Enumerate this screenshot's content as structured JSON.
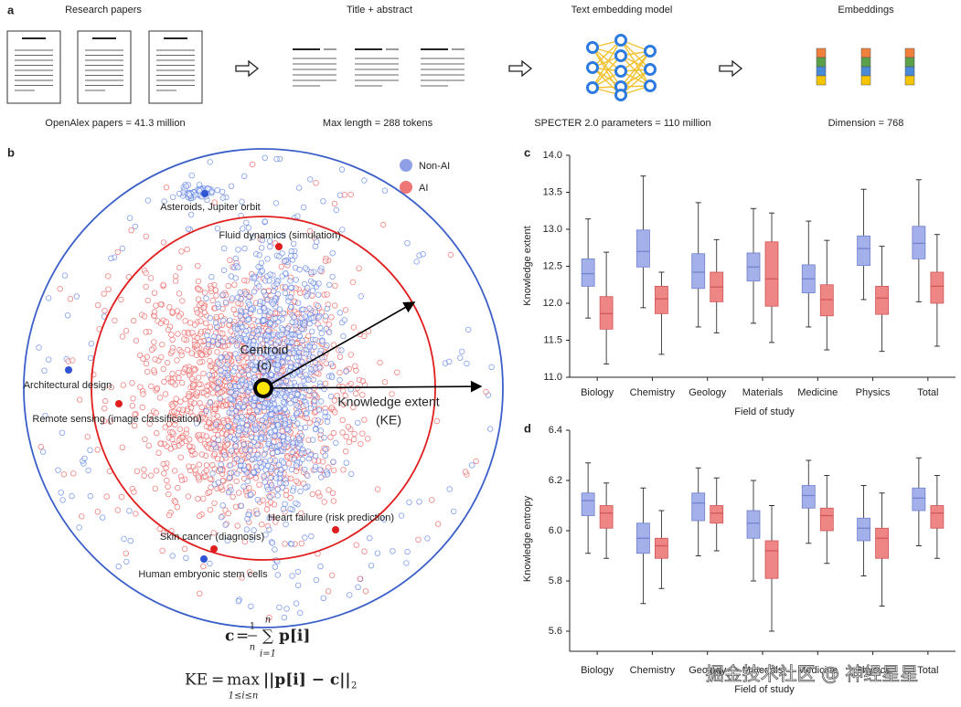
{
  "panel_a": {
    "label": "a",
    "steps": [
      {
        "title": "Research papers",
        "caption": "OpenAlex papers = 41.3 million"
      },
      {
        "title": "Title + abstract",
        "caption": "Max length = 288 tokens"
      },
      {
        "title": "Text embedding model",
        "caption": "SPECTER 2.0 parameters = 110 million"
      },
      {
        "title": "Embeddings",
        "caption": "Dimension = 768"
      }
    ]
  },
  "panel_b": {
    "label": "b",
    "centroid_label": "Centroid",
    "centroid_symbol": "(c)",
    "extent_label": "Knowledge extent",
    "extent_symbol": "(KE)",
    "annotations": [
      "Asteroids, Jupiter orbit",
      "Fluid dynamics (simulation)",
      "Architectural design",
      "Remote sensing (image classification)",
      "Heart failure (risk prediction)",
      "Skin cancer (diagnosis)",
      "Human embryonic stem cells"
    ],
    "formula_1": [
      "c",
      "=",
      "1",
      "n",
      "n",
      "∑",
      "i=1",
      "p[i]"
    ],
    "formula_2": [
      "KE",
      "=",
      "max",
      "1≤i≤n",
      "||p[i] − c||",
      "2"
    ]
  },
  "watermark": "掘金技术社区 @ 神经星星",
  "chart_data": [
    {
      "type": "box",
      "label": "c",
      "x_label": "Field of study",
      "y_label": "Knowledge extent",
      "categories": [
        "Biology",
        "Chemistry",
        "Geology",
        "Materials",
        "Medicine",
        "Physics",
        "Total"
      ],
      "ylim": [
        11.0,
        14.0
      ],
      "yticks": [
        {
          "value": 11.0,
          "label": "11.0"
        },
        11.5,
        {
          "value": 12.0,
          "label": "12.0"
        },
        12.5,
        {
          "value": 13.0,
          "label": "13.0"
        },
        13.5,
        {
          "value": 14.0,
          "label": "14.0"
        }
      ],
      "series": [
        {
          "name": "Non-AI",
          "color": "#a3b0ea",
          "low": [
            11.8,
            11.94,
            11.68,
            11.73,
            11.68,
            12.05,
            12.02
          ],
          "q1": [
            12.23,
            12.49,
            12.2,
            12.3,
            12.14,
            12.51,
            12.6
          ],
          "median": [
            12.4,
            12.7,
            12.42,
            12.49,
            12.33,
            12.74,
            12.81
          ],
          "q3": [
            12.6,
            12.99,
            12.67,
            12.68,
            12.52,
            12.91,
            13.04
          ],
          "high": [
            13.14,
            13.72,
            13.36,
            13.28,
            13.11,
            13.54,
            13.67
          ]
        },
        {
          "name": "AI",
          "color": "#ef8686",
          "low": [
            11.18,
            11.31,
            11.6,
            11.47,
            11.37,
            11.35,
            11.42
          ],
          "q1": [
            11.65,
            11.86,
            12.02,
            11.96,
            11.83,
            11.85,
            12.0
          ],
          "median": [
            11.86,
            12.06,
            12.22,
            12.33,
            12.05,
            12.07,
            12.23
          ],
          "q3": [
            12.09,
            12.23,
            12.42,
            12.83,
            12.25,
            12.23,
            12.42
          ],
          "high": [
            12.69,
            12.42,
            12.86,
            13.22,
            12.85,
            12.77,
            12.93
          ]
        }
      ]
    },
    {
      "type": "box",
      "label": "d",
      "x_label": "Field of study",
      "y_label": "Knowledge entropy",
      "categories": [
        "Biology",
        "Chemistry",
        "Geology",
        "Materials",
        "Medicine",
        "Physics",
        "Total"
      ],
      "ylim": [
        5.52,
        6.4
      ],
      "yticks": [
        5.6,
        5.8,
        {
          "value": 6.0,
          "label": "6.0"
        },
        6.2,
        6.4
      ],
      "series": [
        {
          "name": "Non-AI",
          "color": "#a3b0ea",
          "low": [
            5.91,
            5.71,
            5.9,
            5.8,
            5.95,
            5.82,
            5.94
          ],
          "q1": [
            6.06,
            5.91,
            6.04,
            5.97,
            6.09,
            5.96,
            6.08
          ],
          "median": [
            6.12,
            5.97,
            6.11,
            6.03,
            6.14,
            6.01,
            6.13
          ],
          "q3": [
            6.15,
            6.03,
            6.15,
            6.08,
            6.18,
            6.05,
            6.17
          ],
          "high": [
            6.27,
            6.17,
            6.25,
            6.2,
            6.28,
            6.18,
            6.29
          ]
        },
        {
          "name": "AI",
          "color": "#ef8686",
          "low": [
            5.89,
            5.77,
            5.92,
            5.6,
            5.87,
            5.7,
            5.89
          ],
          "q1": [
            6.01,
            5.89,
            6.03,
            5.81,
            6.0,
            5.89,
            6.01
          ],
          "median": [
            6.07,
            5.94,
            6.07,
            5.92,
            6.06,
            5.97,
            6.07
          ],
          "q3": [
            6.1,
            5.97,
            6.1,
            5.96,
            6.09,
            6.01,
            6.1
          ],
          "high": [
            6.19,
            6.08,
            6.21,
            6.1,
            6.22,
            6.15,
            6.22
          ]
        }
      ]
    }
  ]
}
